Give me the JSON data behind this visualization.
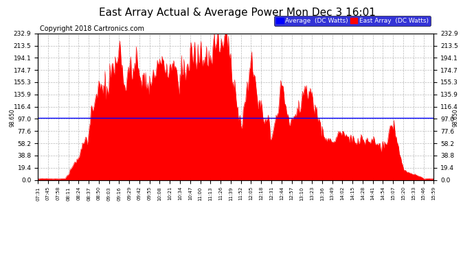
{
  "title": "East Array Actual & Average Power Mon Dec 3 16:01",
  "copyright": "Copyright 2018 Cartronics.com",
  "legend_labels": [
    "Average  (DC Watts)",
    "East Array  (DC Watts)"
  ],
  "legend_colors": [
    "#0000ff",
    "#ff0000"
  ],
  "average_value": 98.65,
  "y_ticks": [
    0.0,
    19.4,
    38.8,
    58.2,
    77.6,
    97.0,
    116.4,
    135.9,
    155.3,
    174.7,
    194.1,
    213.5,
    232.9
  ],
  "ymin": 0,
  "ymax": 232.9,
  "x_labels": [
    "07:31",
    "07:45",
    "07:58",
    "08:11",
    "08:24",
    "08:37",
    "08:50",
    "09:03",
    "09:16",
    "09:29",
    "09:42",
    "09:55",
    "10:08",
    "10:21",
    "10:34",
    "10:47",
    "11:00",
    "11:13",
    "11:26",
    "11:39",
    "11:52",
    "12:05",
    "12:18",
    "12:31",
    "12:44",
    "12:57",
    "13:10",
    "13:23",
    "13:36",
    "13:49",
    "14:02",
    "14:15",
    "14:28",
    "14:41",
    "14:54",
    "15:07",
    "15:20",
    "15:33",
    "15:46",
    "15:59"
  ],
  "fill_color": "#ff0000",
  "avg_line_color": "#0000ff",
  "background_color": "#ffffff",
  "grid_color": "#b0b0b0",
  "title_fontsize": 11,
  "copyright_fontsize": 7,
  "avg_label": "98.650"
}
